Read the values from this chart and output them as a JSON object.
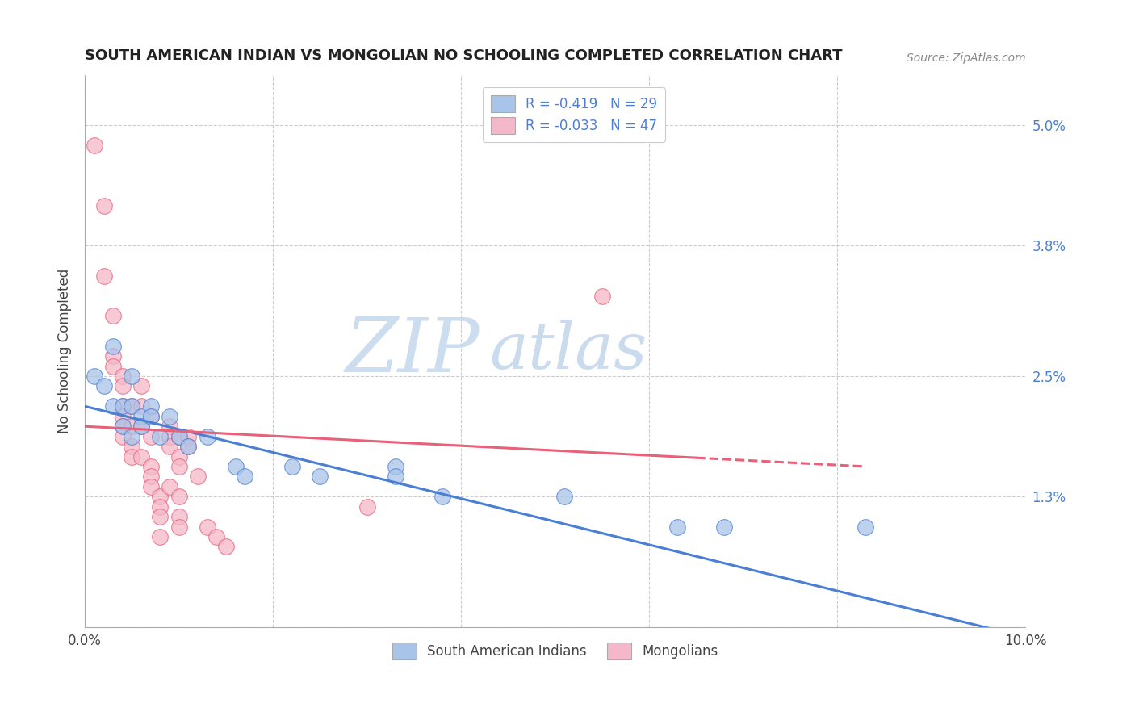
{
  "title": "SOUTH AMERICAN INDIAN VS MONGOLIAN NO SCHOOLING COMPLETED CORRELATION CHART",
  "source": "Source: ZipAtlas.com",
  "ylabel": "No Schooling Completed",
  "xlim": [
    0.0,
    0.1
  ],
  "ylim": [
    0.0,
    0.055
  ],
  "yticks": [
    0.0,
    0.013,
    0.025,
    0.038,
    0.05
  ],
  "ytick_labels": [
    "",
    "1.3%",
    "2.5%",
    "3.8%",
    "5.0%"
  ],
  "xticks": [
    0.0,
    0.02,
    0.04,
    0.06,
    0.08,
    0.1
  ],
  "xtick_labels": [
    "0.0%",
    "",
    "",
    "",
    "",
    "10.0%"
  ],
  "legend1_R": "R = -0.419",
  "legend1_N": "N = 29",
  "legend2_R": "R = -0.033",
  "legend2_N": "N = 47",
  "watermark_zip": "ZIP",
  "watermark_atlas": "atlas",
  "blue_color": "#a8c4e8",
  "pink_color": "#f5b8c8",
  "blue_line_color": "#4a7fd4",
  "pink_line_color": "#e8607a",
  "blue_scatter": [
    [
      0.001,
      0.025
    ],
    [
      0.002,
      0.024
    ],
    [
      0.003,
      0.028
    ],
    [
      0.003,
      0.022
    ],
    [
      0.004,
      0.022
    ],
    [
      0.004,
      0.02
    ],
    [
      0.005,
      0.025
    ],
    [
      0.005,
      0.022
    ],
    [
      0.005,
      0.019
    ],
    [
      0.006,
      0.021
    ],
    [
      0.006,
      0.02
    ],
    [
      0.007,
      0.022
    ],
    [
      0.007,
      0.021
    ],
    [
      0.008,
      0.019
    ],
    [
      0.009,
      0.021
    ],
    [
      0.01,
      0.019
    ],
    [
      0.011,
      0.018
    ],
    [
      0.013,
      0.019
    ],
    [
      0.016,
      0.016
    ],
    [
      0.017,
      0.015
    ],
    [
      0.022,
      0.016
    ],
    [
      0.025,
      0.015
    ],
    [
      0.033,
      0.016
    ],
    [
      0.033,
      0.015
    ],
    [
      0.038,
      0.013
    ],
    [
      0.051,
      0.013
    ],
    [
      0.063,
      0.01
    ],
    [
      0.068,
      0.01
    ],
    [
      0.083,
      0.01
    ]
  ],
  "pink_scatter": [
    [
      0.001,
      0.048
    ],
    [
      0.002,
      0.042
    ],
    [
      0.002,
      0.035
    ],
    [
      0.003,
      0.031
    ],
    [
      0.003,
      0.027
    ],
    [
      0.003,
      0.026
    ],
    [
      0.004,
      0.025
    ],
    [
      0.004,
      0.024
    ],
    [
      0.004,
      0.022
    ],
    [
      0.004,
      0.021
    ],
    [
      0.004,
      0.02
    ],
    [
      0.004,
      0.019
    ],
    [
      0.005,
      0.022
    ],
    [
      0.005,
      0.02
    ],
    [
      0.005,
      0.018
    ],
    [
      0.005,
      0.017
    ],
    [
      0.006,
      0.024
    ],
    [
      0.006,
      0.022
    ],
    [
      0.006,
      0.02
    ],
    [
      0.006,
      0.017
    ],
    [
      0.007,
      0.021
    ],
    [
      0.007,
      0.019
    ],
    [
      0.007,
      0.016
    ],
    [
      0.007,
      0.015
    ],
    [
      0.007,
      0.014
    ],
    [
      0.008,
      0.013
    ],
    [
      0.008,
      0.012
    ],
    [
      0.008,
      0.011
    ],
    [
      0.008,
      0.009
    ],
    [
      0.009,
      0.02
    ],
    [
      0.009,
      0.019
    ],
    [
      0.009,
      0.018
    ],
    [
      0.009,
      0.014
    ],
    [
      0.01,
      0.019
    ],
    [
      0.01,
      0.017
    ],
    [
      0.01,
      0.016
    ],
    [
      0.01,
      0.013
    ],
    [
      0.01,
      0.011
    ],
    [
      0.01,
      0.01
    ],
    [
      0.011,
      0.019
    ],
    [
      0.011,
      0.018
    ],
    [
      0.012,
      0.015
    ],
    [
      0.013,
      0.01
    ],
    [
      0.014,
      0.009
    ],
    [
      0.015,
      0.008
    ],
    [
      0.055,
      0.033
    ],
    [
      0.03,
      0.012
    ]
  ],
  "blue_line": [
    [
      0.0,
      0.022
    ],
    [
      0.1,
      -0.001
    ]
  ],
  "pink_line": [
    [
      0.0,
      0.02
    ],
    [
      0.083,
      0.016
    ]
  ]
}
